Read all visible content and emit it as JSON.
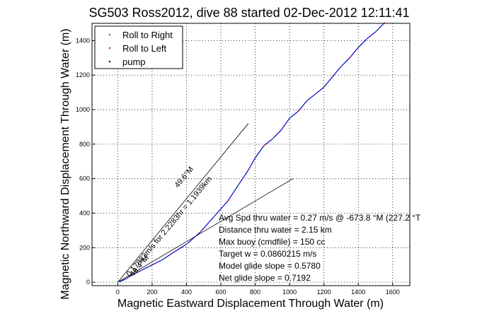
{
  "chart_data": {
    "type": "line",
    "title": "SG503 Ross2012, dive 88 started 02-Dec-2012 12:11:41",
    "xlabel": "Magnetic Eastward Displacement Through Water (m)",
    "ylabel": "Magnetic Northward Displacement Through Water (m)",
    "xlim": [
      -150,
      1700
    ],
    "ylim": [
      -20,
      1500
    ],
    "xticks": [
      0,
      200,
      400,
      600,
      800,
      1000,
      1200,
      1400,
      1600
    ],
    "yticks": [
      0,
      200,
      400,
      600,
      800,
      1000,
      1200,
      1400
    ],
    "grid": true,
    "legend_position": "top-left",
    "legend": [
      {
        "label": "Roll to Right",
        "color": "#00aa00",
        "marker": "point"
      },
      {
        "label": "Roll to Left",
        "color": "#ff0000",
        "marker": "point"
      },
      {
        "label": "pump",
        "color": "#000000",
        "marker": "point"
      }
    ],
    "track": {
      "color": "#0000cc",
      "x": [
        0,
        40,
        80,
        120,
        160,
        200,
        260,
        320,
        400,
        480,
        560,
        640,
        700,
        760,
        800,
        850,
        900,
        950,
        1000,
        1050,
        1100,
        1150,
        1200,
        1250,
        1300,
        1350,
        1400,
        1450,
        1500,
        1550
      ],
      "y": [
        0,
        15,
        40,
        60,
        80,
        100,
        130,
        170,
        220,
        290,
        380,
        470,
        560,
        650,
        720,
        790,
        830,
        880,
        950,
        990,
        1050,
        1090,
        1130,
        1190,
        1250,
        1300,
        1360,
        1410,
        1450,
        1500
      ]
    },
    "reference_lines": [
      {
        "color": "#000000",
        "x": [
          0,
          760
        ],
        "y": [
          0,
          920
        ]
      },
      {
        "color": "#000000",
        "x": [
          0,
          1020
        ],
        "y": [
          0,
          600
        ]
      }
    ],
    "slope_labels": [
      {
        "text": "0.17883m/s for 2.2283hr = 1.1939km",
        "at_x": 70,
        "at_y": 30,
        "angle": -50
      },
      {
        "text": "49.6°M",
        "at_x": 350,
        "at_y": 545,
        "angle": -50
      },
      {
        "text": "49.4°M",
        "at_x": 90,
        "at_y": 30,
        "angle": -50
      }
    ],
    "annotations": [
      "Avg Spd thru water =  0.27 m/s @  -673.8    °M (227.2 °T",
      "Distance thru water =  2.15 km",
      "Max buoy (cmdfile) = 150 cc",
      "Target w = 0.0860215 m/s",
      "Model glide slope = 0.5780",
      "Net glide slope = 0.7192"
    ]
  }
}
